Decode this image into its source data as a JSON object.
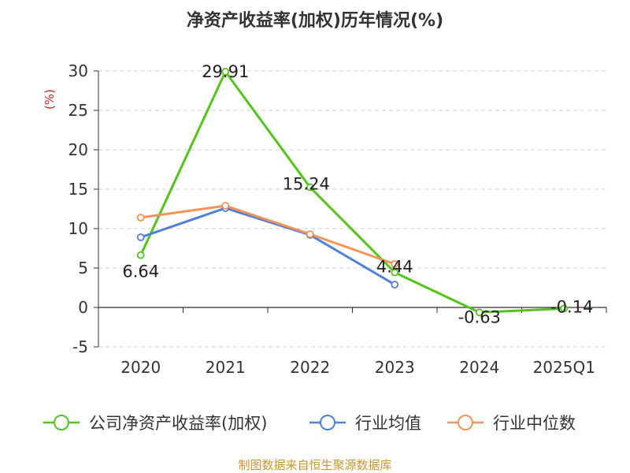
{
  "chart_data": {
    "type": "line",
    "title": "净资产收益率(加权)历年情况(%)",
    "ylabel": "(%)",
    "categories": [
      "2020",
      "2021",
      "2022",
      "2023",
      "2024",
      "2025Q1"
    ],
    "ylim": [
      -5,
      30
    ],
    "yticks": [
      "-5",
      "0",
      "5",
      "10",
      "15",
      "20",
      "25",
      "30"
    ],
    "series": [
      {
        "name": "公司净资产收益率(加权)",
        "color": "#52c41a",
        "values": [
          6.64,
          29.91,
          15.24,
          4.44,
          -0.63,
          -0.14
        ],
        "labels": [
          "6.64",
          "29.91",
          "15.24",
          "4.44",
          "-0.63",
          "-0.14"
        ]
      },
      {
        "name": "行业均值",
        "color": "#4f7fd9",
        "values": [
          8.9,
          12.6,
          9.2,
          2.9,
          null,
          null
        ]
      },
      {
        "name": "行业中位数",
        "color": "#f5925a",
        "values": [
          11.4,
          12.9,
          9.3,
          5.5,
          null,
          null
        ]
      }
    ],
    "source": "制图数据来自恒生聚源数据库",
    "colors": {
      "title": "#333333",
      "ylabel": "#cc2222",
      "source": "#c8952f",
      "grid": "#cccccc"
    }
  }
}
